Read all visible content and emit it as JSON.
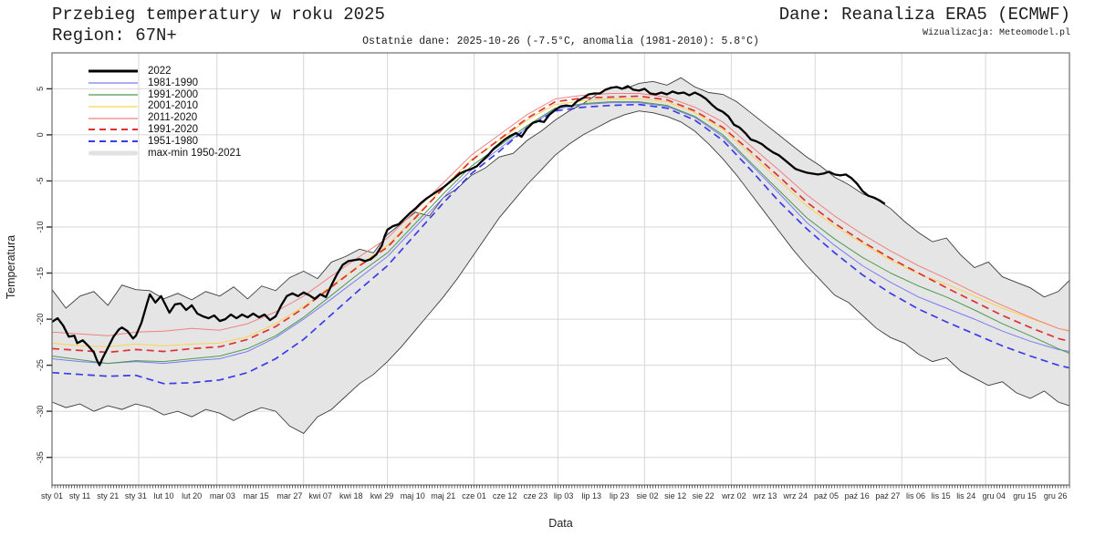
{
  "header": {
    "title": "Przebieg temperatury w roku 2025",
    "region": "Region: 67N+",
    "source": "Dane: Reanaliza ERA5 (ECMWF)",
    "credit": "Wizualizacja: Meteomodel.pl",
    "subtitle": "Ostatnie dane: 2025-10-26 (-7.5°C, anomalia (1981-2010): 5.8°C)"
  },
  "chart_data": {
    "type": "line",
    "title": "Przebieg temperatury w roku 2025",
    "xlabel": "Data",
    "ylabel": "Temperatura",
    "x_unit": "day_of_year",
    "xlim": [
      1,
      365
    ],
    "ylim": [
      -38,
      8.9
    ],
    "grid": true,
    "legend_position": "top-left",
    "yticks": [
      5,
      0,
      -5,
      -10,
      -15,
      -20,
      -25,
      -30,
      -35
    ],
    "month_grid_days": [
      32,
      60,
      91,
      121,
      152,
      182,
      213,
      244,
      274,
      305,
      335
    ],
    "xticks": [
      {
        "day": 1,
        "label": "sty 01"
      },
      {
        "day": 11,
        "label": "sty 11"
      },
      {
        "day": 21,
        "label": "sty 21"
      },
      {
        "day": 31,
        "label": "sty 31"
      },
      {
        "day": 41,
        "label": "lut 10"
      },
      {
        "day": 51,
        "label": "lut 20"
      },
      {
        "day": 62,
        "label": "mar 03"
      },
      {
        "day": 74,
        "label": "mar 15"
      },
      {
        "day": 86,
        "label": "mar 27"
      },
      {
        "day": 97,
        "label": "kwi 07"
      },
      {
        "day": 108,
        "label": "kwi 18"
      },
      {
        "day": 119,
        "label": "kwi 29"
      },
      {
        "day": 130,
        "label": "maj 10"
      },
      {
        "day": 141,
        "label": "maj 21"
      },
      {
        "day": 152,
        "label": "cze 01"
      },
      {
        "day": 163,
        "label": "cze 12"
      },
      {
        "day": 174,
        "label": "cze 23"
      },
      {
        "day": 184,
        "label": "lip 03"
      },
      {
        "day": 194,
        "label": "lip 13"
      },
      {
        "day": 204,
        "label": "lip 23"
      },
      {
        "day": 214,
        "label": "sie 02"
      },
      {
        "day": 224,
        "label": "sie 12"
      },
      {
        "day": 234,
        "label": "sie 22"
      },
      {
        "day": 245,
        "label": "wrz 02"
      },
      {
        "day": 256,
        "label": "wrz 13"
      },
      {
        "day": 267,
        "label": "wrz 24"
      },
      {
        "day": 278,
        "label": "paź 05"
      },
      {
        "day": 289,
        "label": "paź 16"
      },
      {
        "day": 300,
        "label": "paź 27"
      },
      {
        "day": 310,
        "label": "lis 06"
      },
      {
        "day": 319,
        "label": "lis 15"
      },
      {
        "day": 328,
        "label": "lis 24"
      },
      {
        "day": 338,
        "label": "gru 04"
      },
      {
        "day": 349,
        "label": "gru 15"
      },
      {
        "day": 360,
        "label": "gru 26"
      }
    ],
    "clim_days": [
      1,
      11,
      21,
      31,
      41,
      51,
      61,
      71,
      81,
      91,
      101,
      111,
      121,
      131,
      141,
      151,
      161,
      171,
      181,
      191,
      201,
      211,
      221,
      231,
      241,
      251,
      261,
      271,
      281,
      291,
      301,
      311,
      321,
      331,
      341,
      351,
      361,
      365
    ],
    "band": {
      "name": "max-min 1950-2021",
      "color": "#e5e5e5",
      "edge_color": "#3c3c3c",
      "days": [
        1,
        6,
        11,
        16,
        21,
        26,
        31,
        36,
        41,
        46,
        51,
        56,
        61,
        66,
        71,
        76,
        81,
        86,
        91,
        96,
        101,
        106,
        111,
        116,
        121,
        126,
        131,
        136,
        141,
        146,
        151,
        156,
        161,
        166,
        171,
        176,
        181,
        186,
        191,
        196,
        201,
        206,
        211,
        216,
        221,
        226,
        231,
        236,
        241,
        246,
        251,
        256,
        261,
        266,
        271,
        276,
        281,
        286,
        291,
        296,
        301,
        306,
        311,
        316,
        321,
        326,
        331,
        336,
        341,
        346,
        351,
        356,
        361,
        365
      ],
      "max": [
        -16.8,
        -18.8,
        -17.5,
        -17.0,
        -18.5,
        -16.3,
        -16.8,
        -16.9,
        -17.8,
        -17.2,
        -17.9,
        -17.0,
        -17.5,
        -16.5,
        -17.8,
        -16.4,
        -16.9,
        -15.5,
        -14.8,
        -15.6,
        -13.8,
        -13.2,
        -12.4,
        -12.8,
        -10.8,
        -9.6,
        -8.4,
        -8.8,
        -6.8,
        -5.8,
        -4.4,
        -3.6,
        -2.4,
        -2.0,
        -0.6,
        0.4,
        1.6,
        2.6,
        3.4,
        4.4,
        5.2,
        5.0,
        5.6,
        5.8,
        5.4,
        6.2,
        5.2,
        4.6,
        4.4,
        3.6,
        2.4,
        1.2,
        0.0,
        -1.2,
        -2.4,
        -3.4,
        -4.6,
        -5.4,
        -6.4,
        -7.0,
        -8.0,
        -9.4,
        -10.6,
        -11.6,
        -11.2,
        -13.0,
        -14.4,
        -13.8,
        -15.4,
        -16.0,
        -16.6,
        -17.6,
        -17.0,
        -15.8
      ],
      "min": [
        -29.0,
        -29.6,
        -29.2,
        -30.0,
        -29.4,
        -29.8,
        -29.2,
        -29.6,
        -30.4,
        -30.0,
        -30.6,
        -29.8,
        -30.2,
        -31.0,
        -30.2,
        -29.6,
        -30.0,
        -31.6,
        -32.4,
        -30.6,
        -29.8,
        -28.4,
        -27.0,
        -26.0,
        -24.6,
        -23.0,
        -21.2,
        -19.4,
        -17.6,
        -15.6,
        -13.4,
        -11.2,
        -9.0,
        -7.2,
        -5.4,
        -3.8,
        -2.2,
        -1.0,
        0.0,
        0.8,
        1.6,
        2.2,
        2.6,
        2.4,
        2.0,
        1.4,
        0.4,
        -1.0,
        -2.6,
        -4.4,
        -6.4,
        -8.4,
        -10.4,
        -12.4,
        -14.2,
        -15.8,
        -17.4,
        -18.2,
        -19.6,
        -21.0,
        -22.0,
        -22.6,
        -23.8,
        -24.6,
        -24.2,
        -25.6,
        -26.4,
        -27.2,
        -26.8,
        -28.0,
        -28.6,
        -27.8,
        -29.0,
        -29.4
      ]
    },
    "series": [
      {
        "name": "2022",
        "color": "#000000",
        "width": 2.3,
        "dash": null,
        "days": [
          1,
          3,
          5,
          7,
          9,
          10,
          12,
          14,
          16,
          17,
          18,
          19,
          21,
          23,
          25,
          26,
          28,
          30,
          31,
          33,
          35,
          36,
          38,
          40,
          42,
          43,
          45,
          47,
          49,
          51,
          53,
          55,
          57,
          59,
          61,
          63,
          65,
          67,
          69,
          71,
          73,
          75,
          77,
          79,
          81,
          83,
          85,
          87,
          89,
          91,
          93,
          95,
          97,
          99,
          101,
          103,
          105,
          107,
          109,
          111,
          113,
          115,
          117,
          119,
          120,
          121,
          123,
          125,
          127,
          129,
          131,
          133,
          135,
          137,
          139,
          141,
          143,
          145,
          147,
          149,
          151,
          153,
          155,
          157,
          159,
          161,
          163,
          165,
          167,
          169,
          171,
          173,
          175,
          177,
          179,
          181,
          183,
          185,
          187,
          189,
          191,
          193,
          195,
          197,
          199,
          201,
          203,
          205,
          207,
          209,
          211,
          213,
          215,
          217,
          219,
          221,
          223,
          225,
          227,
          229,
          231,
          233,
          235,
          237,
          239,
          241,
          243,
          245,
          247,
          249,
          251,
          253,
          255,
          257,
          259,
          261,
          263,
          265,
          267,
          269,
          271,
          273,
          275,
          277,
          279,
          281,
          283,
          285,
          287,
          289,
          291,
          293,
          295,
          297,
          299
        ],
        "values": [
          -20.3,
          -19.9,
          -20.7,
          -21.9,
          -21.8,
          -22.6,
          -22.3,
          -22.9,
          -23.6,
          -24.4,
          -25.0,
          -24.3,
          -23.1,
          -21.9,
          -21.1,
          -20.9,
          -21.3,
          -22.1,
          -21.8,
          -20.4,
          -18.3,
          -17.3,
          -18.2,
          -17.5,
          -18.7,
          -19.3,
          -18.4,
          -18.3,
          -19.0,
          -18.5,
          -19.4,
          -19.7,
          -19.9,
          -19.6,
          -20.2,
          -20.0,
          -19.5,
          -19.9,
          -19.5,
          -19.8,
          -19.4,
          -19.8,
          -19.5,
          -20.1,
          -19.7,
          -18.5,
          -17.5,
          -17.2,
          -17.5,
          -17.1,
          -17.4,
          -17.8,
          -17.3,
          -17.6,
          -16.3,
          -15.1,
          -14.1,
          -13.7,
          -13.6,
          -13.5,
          -13.7,
          -13.5,
          -13.0,
          -12.0,
          -11.0,
          -10.3,
          -9.9,
          -9.7,
          -9.1,
          -8.5,
          -8.0,
          -7.4,
          -6.9,
          -6.5,
          -6.1,
          -5.7,
          -5.2,
          -4.7,
          -4.2,
          -3.9,
          -3.7,
          -3.4,
          -2.8,
          -2.2,
          -1.5,
          -1.0,
          -0.5,
          -0.1,
          0.2,
          -0.2,
          0.7,
          1.3,
          1.5,
          1.4,
          2.2,
          2.7,
          3.1,
          3.2,
          3.1,
          3.7,
          4.0,
          4.4,
          4.5,
          4.5,
          4.9,
          5.1,
          5.2,
          5.0,
          5.3,
          4.9,
          4.8,
          5.0,
          4.5,
          4.4,
          4.6,
          4.4,
          4.7,
          4.5,
          4.6,
          4.3,
          4.6,
          4.3,
          3.9,
          3.3,
          2.8,
          2.5,
          2.0,
          1.1,
          0.8,
          0.2,
          -0.5,
          -0.7,
          -1.0,
          -1.5,
          -1.9,
          -2.2,
          -2.7,
          -3.2,
          -3.7,
          -3.9,
          -4.1,
          -4.2,
          -4.3,
          -4.2,
          -4.0,
          -4.3,
          -4.4,
          -4.3,
          -4.7,
          -5.3,
          -6.1,
          -6.6,
          -6.8,
          -7.1,
          -7.5
        ]
      },
      {
        "name": "1981-1990",
        "color": "#7a7af2",
        "width": 1.0,
        "dash": null,
        "use_clim_days": true,
        "values": [
          -24.3,
          -24.6,
          -24.8,
          -24.6,
          -24.8,
          -24.5,
          -24.3,
          -23.5,
          -22.0,
          -20.0,
          -17.8,
          -15.5,
          -13.2,
          -10.0,
          -6.8,
          -3.8,
          -1.5,
          0.8,
          2.8,
          3.3,
          3.5,
          3.5,
          3.1,
          1.9,
          -0.2,
          -3.2,
          -6.3,
          -9.5,
          -12.0,
          -14.2,
          -16.0,
          -17.6,
          -18.8,
          -20.0,
          -21.3,
          -22.4,
          -23.3,
          -23.5
        ]
      },
      {
        "name": "1991-2000",
        "color": "#4e9a4e",
        "width": 1.0,
        "dash": null,
        "use_clim_days": true,
        "values": [
          -24.0,
          -24.4,
          -24.8,
          -24.5,
          -24.6,
          -24.3,
          -24.0,
          -23.2,
          -21.8,
          -19.8,
          -17.4,
          -15.0,
          -12.8,
          -9.6,
          -6.4,
          -3.4,
          -1.2,
          1.0,
          2.9,
          3.4,
          3.6,
          3.6,
          3.2,
          2.0,
          0.0,
          -3.0,
          -6.0,
          -9.0,
          -11.3,
          -13.3,
          -15.0,
          -16.4,
          -17.6,
          -19.0,
          -20.5,
          -21.8,
          -23.2,
          -23.7
        ]
      },
      {
        "name": "2001-2010",
        "color": "#ffd24d",
        "width": 1.0,
        "dash": null,
        "use_clim_days": true,
        "values": [
          -22.6,
          -22.9,
          -23.0,
          -22.7,
          -22.9,
          -22.7,
          -22.6,
          -21.9,
          -20.5,
          -18.6,
          -16.4,
          -14.1,
          -12.0,
          -8.9,
          -5.7,
          -2.7,
          -0.6,
          1.6,
          3.3,
          3.7,
          3.9,
          3.9,
          3.6,
          2.4,
          0.6,
          -2.1,
          -4.9,
          -7.7,
          -9.9,
          -11.8,
          -13.6,
          -15.1,
          -16.2,
          -17.5,
          -18.8,
          -19.9,
          -21.0,
          -21.2
        ]
      },
      {
        "name": "2011-2020",
        "color": "#f08080",
        "width": 1.0,
        "dash": null,
        "use_clim_days": true,
        "values": [
          -21.4,
          -21.6,
          -21.8,
          -21.4,
          -21.3,
          -21.0,
          -21.2,
          -20.5,
          -19.2,
          -17.5,
          -15.3,
          -13.2,
          -11.2,
          -8.2,
          -5.2,
          -2.2,
          0.0,
          2.2,
          3.9,
          4.3,
          4.5,
          4.5,
          4.1,
          3.0,
          1.4,
          -1.2,
          -3.8,
          -6.5,
          -8.8,
          -10.8,
          -12.6,
          -14.2,
          -15.6,
          -17.1,
          -18.5,
          -19.8,
          -21.0,
          -21.3
        ]
      },
      {
        "name": "1991-2020",
        "color": "#e03131",
        "width": 1.7,
        "dash": "8 5",
        "use_clim_days": true,
        "values": [
          -23.2,
          -23.4,
          -23.6,
          -23.3,
          -23.5,
          -23.2,
          -23.0,
          -22.2,
          -20.8,
          -18.8,
          -16.5,
          -14.2,
          -12.2,
          -9.0,
          -5.8,
          -2.8,
          -0.5,
          1.8,
          3.6,
          4.0,
          4.1,
          4.2,
          3.8,
          2.6,
          0.8,
          -1.8,
          -4.5,
          -7.3,
          -9.6,
          -11.6,
          -13.4,
          -15.0,
          -16.6,
          -18.1,
          -19.6,
          -20.9,
          -22.1,
          -22.4
        ]
      },
      {
        "name": "1951-1980",
        "color": "#3b3be8",
        "width": 1.7,
        "dash": "8 5",
        "use_clim_days": true,
        "values": [
          -25.8,
          -26.0,
          -26.2,
          -26.1,
          -27.0,
          -26.9,
          -26.6,
          -25.8,
          -24.3,
          -22.2,
          -19.5,
          -16.8,
          -14.2,
          -10.8,
          -7.4,
          -4.2,
          -1.8,
          0.8,
          2.6,
          3.0,
          3.2,
          3.3,
          2.9,
          1.6,
          -0.6,
          -3.8,
          -7.2,
          -10.2,
          -12.8,
          -15.2,
          -17.2,
          -18.9,
          -20.3,
          -21.6,
          -22.9,
          -24.0,
          -25.0,
          -25.3
        ]
      }
    ]
  }
}
